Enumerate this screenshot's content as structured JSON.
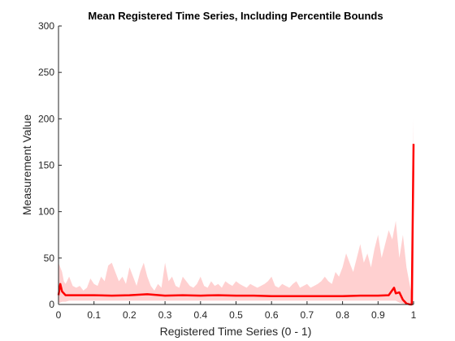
{
  "chart_data": {
    "type": "area",
    "title": "Mean Registered Time Series, Including Percentile Bounds",
    "xlabel": "Registered Time Series (0 - 1)",
    "ylabel": "Measurement Value",
    "xlim": [
      0,
      1
    ],
    "ylim": [
      0,
      300
    ],
    "xticks": [
      "0",
      "0.1",
      "0.2",
      "0.3",
      "0.4",
      "0.5",
      "0.6",
      "0.7",
      "0.8",
      "0.9",
      "1"
    ],
    "yticks": [
      "0",
      "50",
      "100",
      "150",
      "200",
      "250",
      "300"
    ],
    "grid": false,
    "colors": {
      "mean_line": "#ff0000",
      "band": "#ffc0c0",
      "axis": "#262626"
    },
    "series": [
      {
        "role": "mean",
        "x": [
          0,
          0.005,
          0.01,
          0.02,
          0.05,
          0.1,
          0.15,
          0.2,
          0.25,
          0.3,
          0.35,
          0.4,
          0.45,
          0.5,
          0.55,
          0.6,
          0.65,
          0.7,
          0.75,
          0.8,
          0.85,
          0.9,
          0.93,
          0.945,
          0.95,
          0.96,
          0.97,
          0.98,
          0.99,
          0.995,
          1.0
        ],
        "values": [
          10,
          22,
          14,
          10,
          10,
          10,
          9.5,
          10,
          11,
          9.5,
          10,
          9.5,
          10,
          9.5,
          9.5,
          9,
          9,
          9,
          9,
          9,
          9.5,
          9.5,
          10,
          18,
          12,
          13,
          5,
          1,
          0,
          0,
          173
        ]
      },
      {
        "role": "percentile-band",
        "x": [
          0,
          0.005,
          0.01,
          0.015,
          0.02,
          0.03,
          0.04,
          0.05,
          0.06,
          0.07,
          0.08,
          0.09,
          0.1,
          0.11,
          0.12,
          0.13,
          0.14,
          0.15,
          0.16,
          0.17,
          0.18,
          0.19,
          0.2,
          0.21,
          0.22,
          0.23,
          0.24,
          0.25,
          0.26,
          0.27,
          0.28,
          0.29,
          0.3,
          0.31,
          0.32,
          0.33,
          0.34,
          0.35,
          0.36,
          0.37,
          0.38,
          0.39,
          0.4,
          0.41,
          0.42,
          0.43,
          0.44,
          0.45,
          0.46,
          0.47,
          0.48,
          0.49,
          0.5,
          0.51,
          0.52,
          0.53,
          0.54,
          0.55,
          0.56,
          0.57,
          0.58,
          0.59,
          0.6,
          0.61,
          0.62,
          0.63,
          0.64,
          0.65,
          0.66,
          0.67,
          0.68,
          0.69,
          0.7,
          0.71,
          0.72,
          0.73,
          0.74,
          0.75,
          0.76,
          0.77,
          0.78,
          0.79,
          0.8,
          0.81,
          0.82,
          0.83,
          0.84,
          0.85,
          0.86,
          0.87,
          0.88,
          0.89,
          0.9,
          0.91,
          0.92,
          0.93,
          0.94,
          0.95,
          0.96,
          0.97,
          0.98,
          0.99,
          0.995,
          1.0
        ],
        "upper": [
          45,
          40,
          35,
          25,
          22,
          30,
          20,
          18,
          20,
          15,
          18,
          28,
          22,
          20,
          30,
          25,
          42,
          45,
          35,
          25,
          30,
          22,
          40,
          30,
          20,
          35,
          45,
          30,
          20,
          15,
          22,
          18,
          45,
          25,
          30,
          20,
          18,
          30,
          25,
          20,
          18,
          22,
          30,
          20,
          18,
          25,
          20,
          22,
          18,
          25,
          22,
          20,
          25,
          22,
          20,
          18,
          22,
          20,
          18,
          20,
          22,
          25,
          30,
          20,
          18,
          22,
          20,
          18,
          22,
          25,
          18,
          20,
          22,
          18,
          20,
          22,
          25,
          30,
          25,
          22,
          35,
          30,
          40,
          55,
          45,
          35,
          50,
          65,
          45,
          55,
          40,
          60,
          75,
          50,
          65,
          80,
          70,
          90,
          50,
          75,
          40,
          20,
          10,
          200
        ],
        "lower": [
          2,
          2,
          3,
          3,
          3,
          4,
          4,
          4,
          4,
          4,
          4,
          4,
          4,
          4,
          4,
          4,
          4,
          4,
          4,
          4,
          4,
          4,
          4,
          4,
          4,
          4,
          4,
          4,
          4,
          4,
          4,
          4,
          4,
          4,
          4,
          4,
          4,
          4,
          4,
          4,
          4,
          4,
          4,
          4,
          4,
          4,
          4,
          4,
          4,
          4,
          4,
          4,
          4,
          4,
          4,
          4,
          4,
          4,
          4,
          4,
          4,
          4,
          4,
          4,
          4,
          4,
          4,
          4,
          4,
          4,
          4,
          4,
          4,
          4,
          4,
          4,
          4,
          4,
          4,
          4,
          4,
          4,
          4,
          4,
          4,
          4,
          4,
          4,
          4,
          4,
          4,
          4,
          4,
          4,
          4,
          4,
          4,
          4,
          2,
          1,
          0,
          0,
          0,
          0
        ]
      }
    ]
  }
}
